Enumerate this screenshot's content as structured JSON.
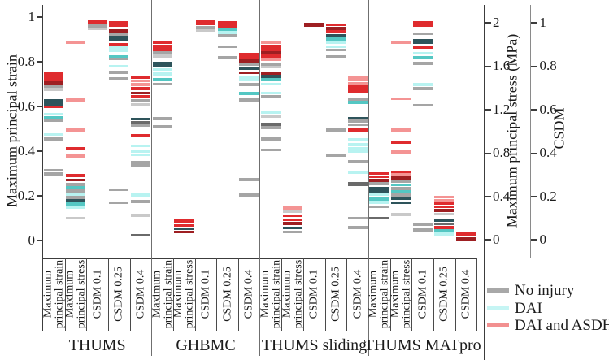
{
  "chart_data": {
    "type": "scatter",
    "mark_style": "horizontal-dash",
    "title": "",
    "left_axis": {
      "label": "Maximum principal strain",
      "ticks": [
        "1",
        "0.8",
        "0.6",
        "0.4",
        "0.2",
        "0"
      ],
      "range": [
        0,
        1
      ]
    },
    "right_axis_stress": {
      "label": "Maximum principal stress (MPa)",
      "ticks": [
        "2",
        "1.6",
        "1.2",
        "0.8",
        "0.4",
        "0"
      ],
      "range": [
        0,
        2
      ]
    },
    "right_axis_csdm": {
      "label": "CSDM",
      "ticks": [
        "1",
        "0.8",
        "0.6",
        "0.4",
        "0.2",
        "0"
      ],
      "range": [
        0,
        1
      ]
    },
    "column_labels": [
      [
        "Maximum",
        "principal strain"
      ],
      [
        "Maximum",
        "principal stress"
      ],
      [
        "CSDM 0.1"
      ],
      [
        "CSDM 0.25"
      ],
      [
        "CSDM 0.4"
      ]
    ],
    "column_axes": [
      "strain",
      "stress",
      "csdm",
      "csdm",
      "csdm"
    ],
    "palette": {
      "red": "#df2b2e",
      "darkred": "#9e1f22",
      "pink": "#f49494",
      "cyan": "#b8f3f1",
      "teal": "#54c7c3",
      "darkteal": "#2e545b",
      "gray": "#a5a5a5",
      "lightgray": "#c9c9c9",
      "darkgray": "#6a6a6a"
    },
    "legend": [
      {
        "label": "No injury",
        "color": "#a8a8a8"
      },
      {
        "label": "DAI",
        "color": "#c6f5f4"
      },
      {
        "label": "DAI and ASDH",
        "color": "#f29090"
      }
    ],
    "panels": [
      {
        "name": "THUMS",
        "columns": [
          [
            [
              0.75,
              "red"
            ],
            [
              0.735,
              "red"
            ],
            [
              0.72,
              "red"
            ],
            [
              0.705,
              "darkred"
            ],
            [
              0.69,
              "gray"
            ],
            [
              0.676,
              "lightgray"
            ],
            [
              0.625,
              "darkteal"
            ],
            [
              0.611,
              "darkteal"
            ],
            [
              0.598,
              "red"
            ],
            [
              0.565,
              "cyan"
            ],
            [
              0.551,
              "teal"
            ],
            [
              0.536,
              "gray"
            ],
            [
              0.475,
              "cyan"
            ],
            [
              0.455,
              "gray"
            ],
            [
              0.315,
              "gray"
            ],
            [
              0.298,
              "gray"
            ]
          ],
          [
            [
              1.82,
              "pink"
            ],
            [
              1.29,
              "pink"
            ],
            [
              1.01,
              "pink"
            ],
            [
              0.84,
              "red"
            ],
            [
              0.77,
              "pink"
            ],
            [
              0.59,
              "red"
            ],
            [
              0.55,
              "darkred"
            ],
            [
              0.51,
              "gray"
            ],
            [
              0.48,
              "teal"
            ],
            [
              0.45,
              "gray"
            ],
            [
              0.42,
              "cyan"
            ],
            [
              0.39,
              "gray"
            ],
            [
              0.36,
              "darkteal"
            ],
            [
              0.33,
              "teal"
            ],
            [
              0.3,
              "cyan"
            ],
            [
              0.2,
              "lightgray"
            ]
          ],
          [
            [
              1.0,
              "red",
              6
            ],
            [
              0.985,
              "gray"
            ],
            [
              0.972,
              "lightgray"
            ]
          ],
          [
            [
              0.995,
              "red",
              7
            ],
            [
              0.962,
              "darkred"
            ],
            [
              0.948,
              "gray"
            ],
            [
              0.928,
              "darkteal",
              6
            ],
            [
              0.9,
              "red"
            ],
            [
              0.878,
              "cyan",
              7
            ],
            [
              0.845,
              "teal"
            ],
            [
              0.833,
              "gray"
            ],
            [
              0.8,
              "cyan"
            ],
            [
              0.772,
              "gray"
            ],
            [
              0.742,
              "gray"
            ],
            [
              0.23,
              "gray"
            ],
            [
              0.17,
              "gray"
            ]
          ],
          [
            [
              0.748,
              "red"
            ],
            [
              0.732,
              "pink"
            ],
            [
              0.716,
              "pink"
            ],
            [
              0.696,
              "red"
            ],
            [
              0.676,
              "darkred"
            ],
            [
              0.66,
              "red"
            ],
            [
              0.64,
              "gray"
            ],
            [
              0.624,
              "lightgray"
            ],
            [
              0.556,
              "darkteal"
            ],
            [
              0.541,
              "darkgray"
            ],
            [
              0.526,
              "gray"
            ],
            [
              0.48,
              "red"
            ],
            [
              0.433,
              "cyan"
            ],
            [
              0.407,
              "cyan"
            ],
            [
              0.392,
              "cyan"
            ],
            [
              0.356,
              "gray"
            ],
            [
              0.341,
              "gray"
            ],
            [
              0.206,
              "cyan"
            ],
            [
              0.176,
              "gray"
            ],
            [
              0.113,
              "lightgray"
            ],
            [
              0.02,
              "darkgray"
            ]
          ]
        ]
      },
      {
        "name": "GHBMC",
        "columns": [
          [
            [
              0.885,
              "red"
            ],
            [
              0.87,
              "red"
            ],
            [
              0.855,
              "red"
            ],
            [
              0.84,
              "gray"
            ],
            [
              0.826,
              "lightgray"
            ],
            [
              0.795,
              "darkteal"
            ],
            [
              0.781,
              "darkteal"
            ],
            [
              0.765,
              "cyan"
            ],
            [
              0.745,
              "cyan"
            ],
            [
              0.72,
              "teal"
            ],
            [
              0.7,
              "gray"
            ],
            [
              0.545,
              "gray"
            ],
            [
              0.51,
              "gray"
            ]
          ],
          [
            [
              0.17,
              "red",
              5
            ],
            [
              0.13,
              "red"
            ],
            [
              0.1,
              "darkteal"
            ],
            [
              0.07,
              "darkred"
            ]
          ],
          [
            [
              1.0,
              "red",
              6
            ],
            [
              0.978,
              "gray"
            ],
            [
              0.965,
              "lightgray"
            ]
          ],
          [
            [
              1.0,
              "red"
            ],
            [
              0.985,
              "red"
            ],
            [
              0.968,
              "teal"
            ],
            [
              0.955,
              "cyan"
            ],
            [
              0.94,
              "gray"
            ],
            [
              0.89,
              "gray"
            ],
            [
              0.84,
              "gray"
            ]
          ],
          [
            [
              0.855,
              "red"
            ],
            [
              0.84,
              "red"
            ],
            [
              0.824,
              "darkred"
            ],
            [
              0.81,
              "gray"
            ],
            [
              0.79,
              "darkteal"
            ],
            [
              0.77,
              "darkred"
            ],
            [
              0.75,
              "cyan"
            ],
            [
              0.736,
              "cyan"
            ],
            [
              0.716,
              "gray"
            ],
            [
              0.675,
              "teal"
            ],
            [
              0.644,
              "gray"
            ],
            [
              0.278,
              "gray"
            ],
            [
              0.206,
              "gray"
            ]
          ]
        ]
      },
      {
        "name": "THUMS sliding",
        "columns": [
          [
            [
              0.885,
              "pink"
            ],
            [
              0.87,
              "red"
            ],
            [
              0.855,
              "red"
            ],
            [
              0.84,
              "darkred"
            ],
            [
              0.825,
              "red"
            ],
            [
              0.81,
              "pink"
            ],
            [
              0.79,
              "gray"
            ],
            [
              0.776,
              "lightgray"
            ],
            [
              0.75,
              "darkred"
            ],
            [
              0.735,
              "darkteal"
            ],
            [
              0.72,
              "teal"
            ],
            [
              0.7,
              "cyan"
            ],
            [
              0.66,
              "cyan"
            ],
            [
              0.645,
              "gray"
            ],
            [
              0.575,
              "cyan"
            ],
            [
              0.556,
              "lightgray"
            ],
            [
              0.52,
              "darkgray"
            ],
            [
              0.505,
              "gray"
            ],
            [
              0.455,
              "gray"
            ],
            [
              0.405,
              "gray"
            ]
          ],
          [
            [
              0.29,
              "pink"
            ],
            [
              0.26,
              "lightgray"
            ],
            [
              0.22,
              "red"
            ],
            [
              0.185,
              "red"
            ],
            [
              0.15,
              "darkred"
            ],
            [
              0.11,
              "darkteal"
            ],
            [
              0.07,
              "gray"
            ]
          ],
          [
            [
              0.99,
              "darkred",
              5
            ]
          ],
          [
            [
              0.99,
              "red"
            ],
            [
              0.974,
              "darkred"
            ],
            [
              0.958,
              "red"
            ],
            [
              0.94,
              "darkteal"
            ],
            [
              0.926,
              "teal"
            ],
            [
              0.91,
              "cyan"
            ],
            [
              0.89,
              "cyan"
            ],
            [
              0.874,
              "gray"
            ],
            [
              0.845,
              "gray"
            ],
            [
              0.505,
              "gray"
            ],
            [
              0.39,
              "gray"
            ]
          ],
          [
            [
              0.75,
              "pink"
            ],
            [
              0.736,
              "pink"
            ],
            [
              0.72,
              "pink"
            ],
            [
              0.705,
              "red"
            ],
            [
              0.685,
              "red"
            ],
            [
              0.644,
              "gray"
            ],
            [
              0.632,
              "teal"
            ],
            [
              0.56,
              "darkteal"
            ],
            [
              0.546,
              "gray"
            ],
            [
              0.53,
              "gray"
            ],
            [
              0.505,
              "red"
            ],
            [
              0.463,
              "cyan"
            ],
            [
              0.438,
              "cyan"
            ],
            [
              0.42,
              "cyan"
            ],
            [
              0.407,
              "cyan"
            ],
            [
              0.36,
              "gray"
            ],
            [
              0.31,
              "cyan"
            ],
            [
              0.257,
              "darkgray",
              5
            ],
            [
              0.1,
              "gray"
            ],
            [
              0.057,
              "gray"
            ]
          ]
        ]
      },
      {
        "name": "THUMS MATpro",
        "columns": [
          [
            [
              0.3,
              "red"
            ],
            [
              0.286,
              "red"
            ],
            [
              0.27,
              "darkred"
            ],
            [
              0.255,
              "gray"
            ],
            [
              0.235,
              "darkteal"
            ],
            [
              0.221,
              "darkteal"
            ],
            [
              0.205,
              "cyan"
            ],
            [
              0.185,
              "teal"
            ],
            [
              0.17,
              "cyan"
            ],
            [
              0.151,
              "gray"
            ],
            [
              0.1,
              "darkgray"
            ]
          ],
          [
            [
              1.82,
              "pink"
            ],
            [
              1.3,
              "pink"
            ],
            [
              1.01,
              "pink"
            ],
            [
              0.9,
              "red"
            ],
            [
              0.81,
              "pink"
            ],
            [
              0.62,
              "red"
            ],
            [
              0.6,
              "pink"
            ],
            [
              0.57,
              "darkred"
            ],
            [
              0.535,
              "gray"
            ],
            [
              0.505,
              "teal"
            ],
            [
              0.47,
              "gray"
            ],
            [
              0.44,
              "teal"
            ],
            [
              0.41,
              "gray"
            ],
            [
              0.38,
              "darkteal"
            ],
            [
              0.34,
              "darkteal"
            ],
            [
              0.23,
              "lightgray"
            ]
          ],
          [
            [
              0.995,
              "red",
              7
            ],
            [
              0.95,
              "gray"
            ],
            [
              0.912,
              "darkteal",
              6
            ],
            [
              0.885,
              "red"
            ],
            [
              0.86,
              "cyan"
            ],
            [
              0.84,
              "teal"
            ],
            [
              0.812,
              "gray"
            ],
            [
              0.716,
              "cyan"
            ],
            [
              0.696,
              "gray"
            ],
            [
              0.62,
              "gray"
            ],
            [
              0.072,
              "gray"
            ],
            [
              0.046,
              "gray"
            ]
          ],
          [
            [
              0.196,
              "pink"
            ],
            [
              0.181,
              "pink"
            ],
            [
              0.166,
              "red"
            ],
            [
              0.151,
              "red"
            ],
            [
              0.135,
              "darkred"
            ],
            [
              0.118,
              "lightgray"
            ],
            [
              0.088,
              "darkteal"
            ],
            [
              0.073,
              "darkgray"
            ],
            [
              0.057,
              "red"
            ],
            [
              0.041,
              "teal"
            ],
            [
              0.026,
              "cyan"
            ]
          ],
          [
            [
              0.028,
              "red",
              5
            ],
            [
              0.004,
              "darkred",
              3.6
            ]
          ]
        ]
      }
    ]
  }
}
